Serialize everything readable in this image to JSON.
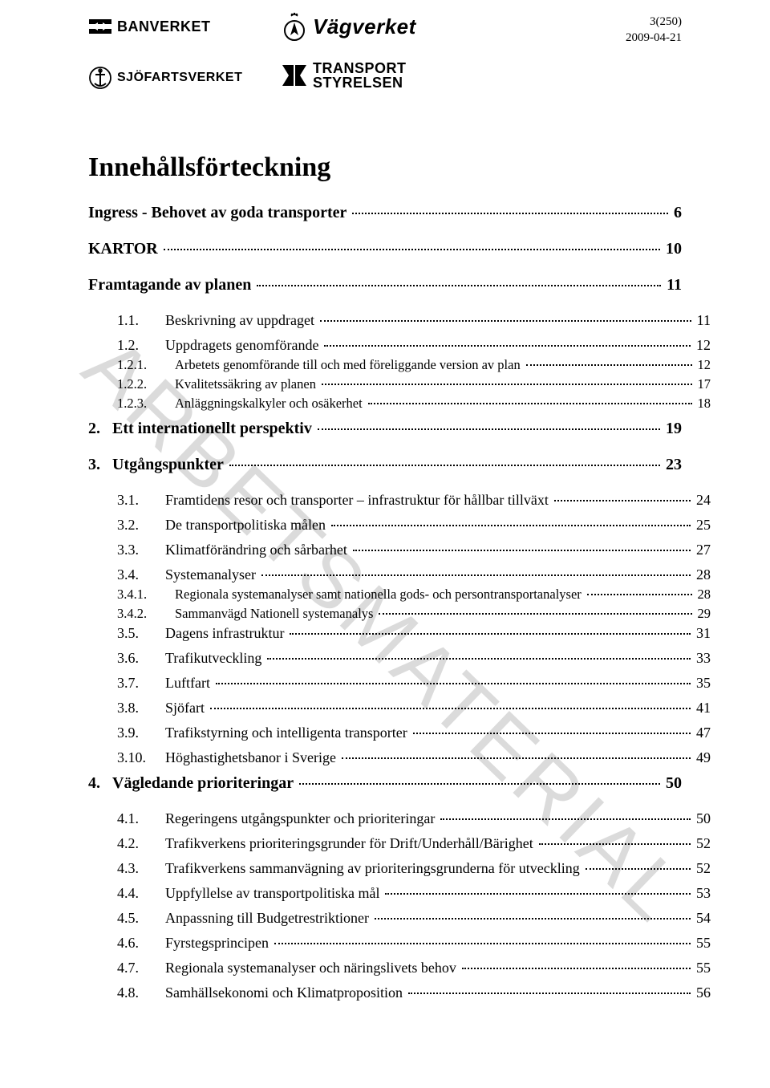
{
  "meta": {
    "page_of": "3(250)",
    "date": "2009-04-21"
  },
  "logos": {
    "banverket": "BANVERKET",
    "vagverket": "Vägverket",
    "sjofart": "SJÖFARTSVERKET",
    "transport_l1": "TRANSPORT",
    "transport_l2": "STYRELSEN"
  },
  "watermark": "ARBETSMATERIAL",
  "title": "Innehållsförteckning",
  "toc": [
    {
      "lvl": 0,
      "bold": true,
      "big": true,
      "num": "",
      "label": "Ingress - Behovet av goda transporter",
      "page": "6",
      "gap": "lg"
    },
    {
      "lvl": 0,
      "bold": true,
      "big": true,
      "num": "",
      "label": "KARTOR",
      "page": "10",
      "gap": "lg"
    },
    {
      "lvl": 0,
      "bold": true,
      "big": true,
      "num": "",
      "label": "Framtagande av planen",
      "page": "11",
      "gap": "lg"
    },
    {
      "lvl": 1,
      "num": "1.1.",
      "label": "Beskrivning av uppdraget",
      "page": "11",
      "gap": "lg"
    },
    {
      "lvl": 1,
      "num": "1.2.",
      "label": "Uppdragets genomförande",
      "page": "12",
      "gap": "sm"
    },
    {
      "lvl": 2,
      "sub": true,
      "num": "1.2.1.",
      "label": "Arbetets genomförande till och med föreliggande version av plan",
      "page": "12"
    },
    {
      "lvl": 2,
      "sub": true,
      "num": "1.2.2.",
      "label": "Kvalitetssäkring av planen",
      "page": "17"
    },
    {
      "lvl": 2,
      "sub": true,
      "num": "1.2.3.",
      "label": "Anläggningskalkyler och osäkerhet",
      "page": "18"
    },
    {
      "lvl": 0,
      "bold": true,
      "big": true,
      "num": "2.   ",
      "label": "Ett internationellt perspektiv",
      "page": "19",
      "gap": "sm"
    },
    {
      "lvl": 0,
      "bold": true,
      "big": true,
      "num": "3.   ",
      "label": "Utgångspunkter",
      "page": "23",
      "gap": "lg"
    },
    {
      "lvl": 1,
      "num": "3.1.",
      "label": "Framtidens resor och transporter – infrastruktur för hållbar tillväxt",
      "page": "24",
      "gap": "lg"
    },
    {
      "lvl": 1,
      "num": "3.2.",
      "label": "De transportpolitiska målen",
      "page": "25",
      "gap": "sm"
    },
    {
      "lvl": 1,
      "num": "3.3.",
      "label": "Klimatförändring och sårbarhet",
      "page": "27",
      "gap": "sm"
    },
    {
      "lvl": 1,
      "num": "3.4.",
      "label": "Systemanalyser",
      "page": "28",
      "gap": "sm"
    },
    {
      "lvl": 2,
      "sub": true,
      "num": "3.4.1.",
      "label": "Regionala systemanalyser samt nationella gods- och persontransportanalyser",
      "page": "28"
    },
    {
      "lvl": 2,
      "sub": true,
      "num": "3.4.2.",
      "label": "Sammanvägd Nationell systemanalys",
      "page": "29"
    },
    {
      "lvl": 1,
      "num": "3.5.",
      "label": "Dagens infrastruktur",
      "page": "31"
    },
    {
      "lvl": 1,
      "num": "3.6.",
      "label": "Trafikutveckling",
      "page": "33",
      "gap": "sm"
    },
    {
      "lvl": 1,
      "num": "3.7.",
      "label": "Luftfart",
      "page": "35",
      "gap": "sm"
    },
    {
      "lvl": 1,
      "num": "3.8.",
      "label": "Sjöfart",
      "page": "41",
      "gap": "sm"
    },
    {
      "lvl": 1,
      "num": "3.9.",
      "label": "Trafikstyrning och intelligenta transporter",
      "page": "47",
      "gap": "sm"
    },
    {
      "lvl": 1,
      "num": "3.10.",
      "label": "Höghastighetsbanor i Sverige",
      "page": "49",
      "gap": "sm"
    },
    {
      "lvl": 0,
      "bold": true,
      "big": true,
      "num": "4.   ",
      "label": "Vägledande prioriteringar",
      "page": "50",
      "gap": "sm"
    },
    {
      "lvl": 1,
      "num": "4.1.",
      "label": "Regeringens utgångspunkter och prioriteringar",
      "page": "50",
      "gap": "lg"
    },
    {
      "lvl": 1,
      "num": "4.2.",
      "label": "Trafikverkens prioriteringsgrunder för Drift/Underhåll/Bärighet",
      "page": "52",
      "gap": "sm"
    },
    {
      "lvl": 1,
      "num": "4.3.",
      "label": "Trafikverkens sammanvägning av prioriteringsgrunderna för utveckling",
      "page": "52",
      "gap": "sm"
    },
    {
      "lvl": 1,
      "num": "4.4.",
      "label": "Uppfyllelse av transportpolitiska mål",
      "page": "53",
      "gap": "sm"
    },
    {
      "lvl": 1,
      "num": "4.5.",
      "label": "Anpassning till Budgetrestriktioner",
      "page": "54",
      "gap": "sm"
    },
    {
      "lvl": 1,
      "num": "4.6.",
      "label": "Fyrstegsprincipen",
      "page": "55",
      "gap": "sm"
    },
    {
      "lvl": 1,
      "num": "4.7.",
      "label": "Regionala systemanalyser och näringslivets behov",
      "page": "55",
      "gap": "sm"
    },
    {
      "lvl": 1,
      "num": "4.8.",
      "label": "Samhällsekonomi och Klimatproposition",
      "page": "56",
      "gap": "sm"
    }
  ]
}
